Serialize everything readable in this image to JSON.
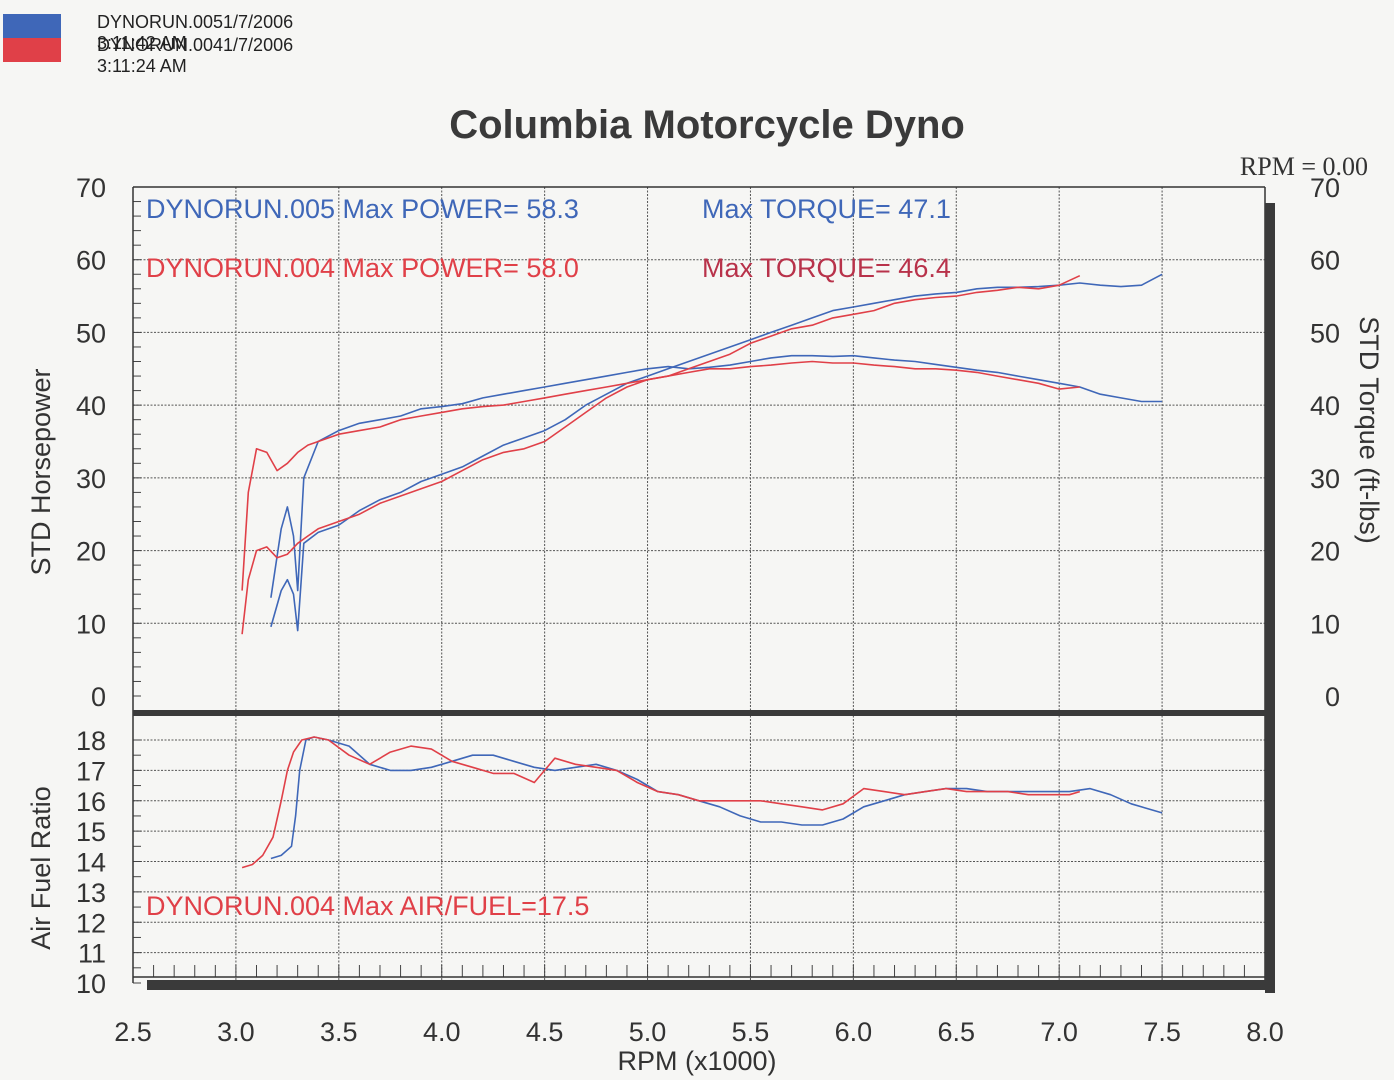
{
  "header": {
    "runs": [
      {
        "label": "DYNORUN.0051/7/2006 3:11:42 AM",
        "color": "#3f67b8"
      },
      {
        "label": "DYNORUN.0041/7/2006 3:11:24 AM",
        "color": "#e04048"
      }
    ]
  },
  "title": "Columbia Motorcycle Dyno",
  "rpm_readout": "RPM = 0.00",
  "annotations": {
    "run005_power": "DYNORUN.005  Max POWER= 58.3",
    "run005_torque": "Max TORQUE= 47.1",
    "run004_power": "DYNORUN.004  Max POWER= 58.0",
    "run004_torque": "Max TORQUE= 46.4",
    "run004_afr": "DYNORUN.004  Max AIR/FUEL=17.5"
  },
  "colors": {
    "blue": "#3f67b8",
    "red": "#e04048",
    "red_dark": "#b8324a",
    "frame": "#333333",
    "grid": "#555555"
  },
  "chart_data": [
    {
      "type": "line",
      "title": "Columbia Motorcycle Dyno",
      "ylabel": "STD Horsepower",
      "y2label": "STD Torque (ft-lbs)",
      "xlim": [
        2.5,
        8.0
      ],
      "ylim": [
        0,
        70
      ],
      "y2lim": [
        0,
        70
      ],
      "xticks": [
        2.5,
        3.0,
        3.5,
        4.0,
        4.5,
        5.0,
        5.5,
        6.0,
        6.5,
        7.0,
        7.5
      ],
      "yticks": [
        0,
        10,
        20,
        30,
        40,
        50,
        60,
        70
      ],
      "grid": true,
      "series": [
        {
          "name": "DYNORUN.005",
          "measure": "power",
          "color": "#3f67b8",
          "x": [
            3.17,
            3.22,
            3.25,
            3.28,
            3.3,
            3.33,
            3.4,
            3.5,
            3.6,
            3.7,
            3.8,
            3.9,
            4.0,
            4.1,
            4.2,
            4.3,
            4.4,
            4.5,
            4.6,
            4.7,
            4.8,
            4.9,
            5.0,
            5.1,
            5.2,
            5.3,
            5.4,
            5.5,
            5.6,
            5.7,
            5.8,
            5.9,
            6.0,
            6.1,
            6.2,
            6.3,
            6.4,
            6.5,
            6.6,
            6.7,
            6.8,
            6.9,
            7.0,
            7.1,
            7.2,
            7.3,
            7.4,
            7.5
          ],
          "y": [
            9.5,
            14.5,
            16.0,
            14.0,
            9.0,
            21.0,
            22.5,
            23.5,
            25.5,
            27.0,
            28.0,
            29.5,
            30.5,
            31.5,
            33.0,
            34.5,
            35.5,
            36.5,
            38.0,
            40.0,
            41.5,
            43.0,
            44.0,
            45.0,
            46.0,
            47.0,
            48.0,
            49.0,
            50.0,
            51.0,
            52.0,
            53.0,
            53.5,
            54.0,
            54.5,
            55.0,
            55.3,
            55.5,
            56.0,
            56.2,
            56.2,
            56.3,
            56.5,
            56.8,
            56.5,
            56.3,
            56.5,
            58.0
          ]
        },
        {
          "name": "DYNORUN.005",
          "measure": "torque",
          "color": "#3f67b8",
          "x": [
            3.17,
            3.22,
            3.25,
            3.28,
            3.3,
            3.33,
            3.4,
            3.5,
            3.6,
            3.7,
            3.8,
            3.9,
            4.0,
            4.1,
            4.2,
            4.3,
            4.4,
            4.5,
            4.6,
            4.7,
            4.8,
            4.9,
            5.0,
            5.1,
            5.2,
            5.3,
            5.4,
            5.5,
            5.6,
            5.7,
            5.8,
            5.9,
            6.0,
            6.1,
            6.2,
            6.3,
            6.4,
            6.5,
            6.6,
            6.7,
            6.8,
            6.9,
            7.0,
            7.1,
            7.2,
            7.3,
            7.4,
            7.5
          ],
          "y": [
            13.5,
            23.0,
            26.0,
            22.0,
            14.5,
            30.0,
            35.0,
            36.5,
            37.5,
            38.0,
            38.5,
            39.5,
            39.8,
            40.2,
            41.0,
            41.5,
            42.0,
            42.5,
            43.0,
            43.5,
            44.0,
            44.5,
            45.0,
            45.3,
            45.0,
            45.2,
            45.5,
            46.0,
            46.5,
            46.8,
            46.8,
            46.7,
            46.8,
            46.5,
            46.2,
            46.0,
            45.6,
            45.2,
            44.8,
            44.5,
            44.0,
            43.5,
            43.0,
            42.5,
            41.5,
            41.0,
            40.5,
            40.5
          ]
        },
        {
          "name": "DYNORUN.004",
          "measure": "power",
          "color": "#e04048",
          "x": [
            3.03,
            3.06,
            3.1,
            3.15,
            3.2,
            3.25,
            3.3,
            3.35,
            3.4,
            3.5,
            3.6,
            3.7,
            3.8,
            3.9,
            4.0,
            4.1,
            4.2,
            4.3,
            4.4,
            4.5,
            4.6,
            4.7,
            4.8,
            4.9,
            5.0,
            5.1,
            5.2,
            5.3,
            5.4,
            5.5,
            5.6,
            5.7,
            5.8,
            5.9,
            6.0,
            6.1,
            6.2,
            6.3,
            6.4,
            6.5,
            6.6,
            6.7,
            6.8,
            6.9,
            7.0,
            7.1
          ],
          "y": [
            8.5,
            16.0,
            20.0,
            20.5,
            19.0,
            19.5,
            21.0,
            22.0,
            23.0,
            24.0,
            25.0,
            26.5,
            27.5,
            28.5,
            29.5,
            31.0,
            32.5,
            33.5,
            34.0,
            35.0,
            37.0,
            39.0,
            41.0,
            42.5,
            43.5,
            44.0,
            45.0,
            46.0,
            47.0,
            48.5,
            49.5,
            50.5,
            51.0,
            52.0,
            52.5,
            53.0,
            54.0,
            54.5,
            54.8,
            55.0,
            55.5,
            55.8,
            56.2,
            56.0,
            56.5,
            57.8
          ]
        },
        {
          "name": "DYNORUN.004",
          "measure": "torque",
          "color": "#e04048",
          "x": [
            3.03,
            3.06,
            3.1,
            3.15,
            3.2,
            3.25,
            3.3,
            3.35,
            3.4,
            3.5,
            3.6,
            3.7,
            3.8,
            3.9,
            4.0,
            4.1,
            4.2,
            4.3,
            4.4,
            4.5,
            4.6,
            4.7,
            4.8,
            4.9,
            5.0,
            5.1,
            5.2,
            5.3,
            5.4,
            5.5,
            5.6,
            5.7,
            5.8,
            5.9,
            6.0,
            6.1,
            6.2,
            6.3,
            6.4,
            6.5,
            6.6,
            6.7,
            6.8,
            6.9,
            7.0,
            7.1
          ],
          "y": [
            14.5,
            28.0,
            34.0,
            33.5,
            31.0,
            32.0,
            33.5,
            34.5,
            35.0,
            36.0,
            36.5,
            37.0,
            38.0,
            38.5,
            39.0,
            39.5,
            39.8,
            40.0,
            40.5,
            41.0,
            41.5,
            42.0,
            42.5,
            43.0,
            43.5,
            44.0,
            44.5,
            45.0,
            45.0,
            45.3,
            45.5,
            45.8,
            46.0,
            45.8,
            45.8,
            45.5,
            45.3,
            45.0,
            45.0,
            44.8,
            44.5,
            44.0,
            43.5,
            43.0,
            42.2,
            42.5
          ]
        }
      ]
    },
    {
      "type": "line",
      "ylabel": "Air Fuel Ratio",
      "xlabel": "RPM (x1000)",
      "xlim": [
        2.5,
        8.0
      ],
      "ylim": [
        10,
        18
      ],
      "xticks": [
        2.5,
        3.0,
        3.5,
        4.0,
        4.5,
        5.0,
        5.5,
        6.0,
        6.5,
        7.0,
        7.5,
        8.0
      ],
      "xtick_labels": [
        "2.5",
        "3.0",
        "3.5",
        "4.0",
        "4.5",
        "5.0",
        "5.5",
        "6.0",
        "6.5",
        "7.0",
        "7.5",
        "8.0"
      ],
      "yticks": [
        10,
        11,
        12,
        13,
        14,
        15,
        16,
        17,
        18
      ],
      "grid": true,
      "series": [
        {
          "name": "DYNORUN.005",
          "color": "#3f67b8",
          "x": [
            3.17,
            3.22,
            3.27,
            3.29,
            3.31,
            3.34,
            3.38,
            3.45,
            3.55,
            3.65,
            3.75,
            3.85,
            3.95,
            4.05,
            4.15,
            4.25,
            4.35,
            4.45,
            4.55,
            4.65,
            4.75,
            4.85,
            4.95,
            5.05,
            5.15,
            5.25,
            5.35,
            5.45,
            5.55,
            5.65,
            5.75,
            5.85,
            5.95,
            6.05,
            6.15,
            6.25,
            6.35,
            6.45,
            6.55,
            6.65,
            6.75,
            6.85,
            6.95,
            7.05,
            7.15,
            7.25,
            7.35,
            7.5
          ],
          "y": [
            14.1,
            14.2,
            14.5,
            15.5,
            17.0,
            18.0,
            18.1,
            18.0,
            17.8,
            17.2,
            17.0,
            17.0,
            17.1,
            17.3,
            17.5,
            17.5,
            17.3,
            17.1,
            17.0,
            17.1,
            17.2,
            17.0,
            16.7,
            16.3,
            16.2,
            16.0,
            15.8,
            15.5,
            15.3,
            15.3,
            15.2,
            15.2,
            15.4,
            15.8,
            16.0,
            16.2,
            16.3,
            16.4,
            16.4,
            16.3,
            16.3,
            16.3,
            16.3,
            16.3,
            16.4,
            16.2,
            15.9,
            15.6
          ]
        },
        {
          "name": "DYNORUN.004",
          "color": "#e04048",
          "x": [
            3.03,
            3.08,
            3.13,
            3.18,
            3.22,
            3.25,
            3.28,
            3.32,
            3.38,
            3.45,
            3.55,
            3.65,
            3.75,
            3.85,
            3.95,
            4.05,
            4.15,
            4.25,
            4.35,
            4.45,
            4.55,
            4.65,
            4.75,
            4.85,
            4.95,
            5.05,
            5.15,
            5.25,
            5.35,
            5.45,
            5.55,
            5.65,
            5.75,
            5.85,
            5.95,
            6.05,
            6.15,
            6.25,
            6.35,
            6.45,
            6.55,
            6.65,
            6.75,
            6.85,
            6.95,
            7.05,
            7.1
          ],
          "y": [
            13.8,
            13.9,
            14.2,
            14.8,
            16.0,
            17.0,
            17.6,
            18.0,
            18.1,
            18.0,
            17.5,
            17.2,
            17.6,
            17.8,
            17.7,
            17.3,
            17.1,
            16.9,
            16.9,
            16.6,
            17.4,
            17.2,
            17.1,
            17.0,
            16.6,
            16.3,
            16.2,
            16.0,
            16.0,
            16.0,
            16.0,
            15.9,
            15.8,
            15.7,
            15.9,
            16.4,
            16.3,
            16.2,
            16.3,
            16.4,
            16.3,
            16.3,
            16.3,
            16.2,
            16.2,
            16.2,
            16.3
          ]
        }
      ]
    }
  ]
}
